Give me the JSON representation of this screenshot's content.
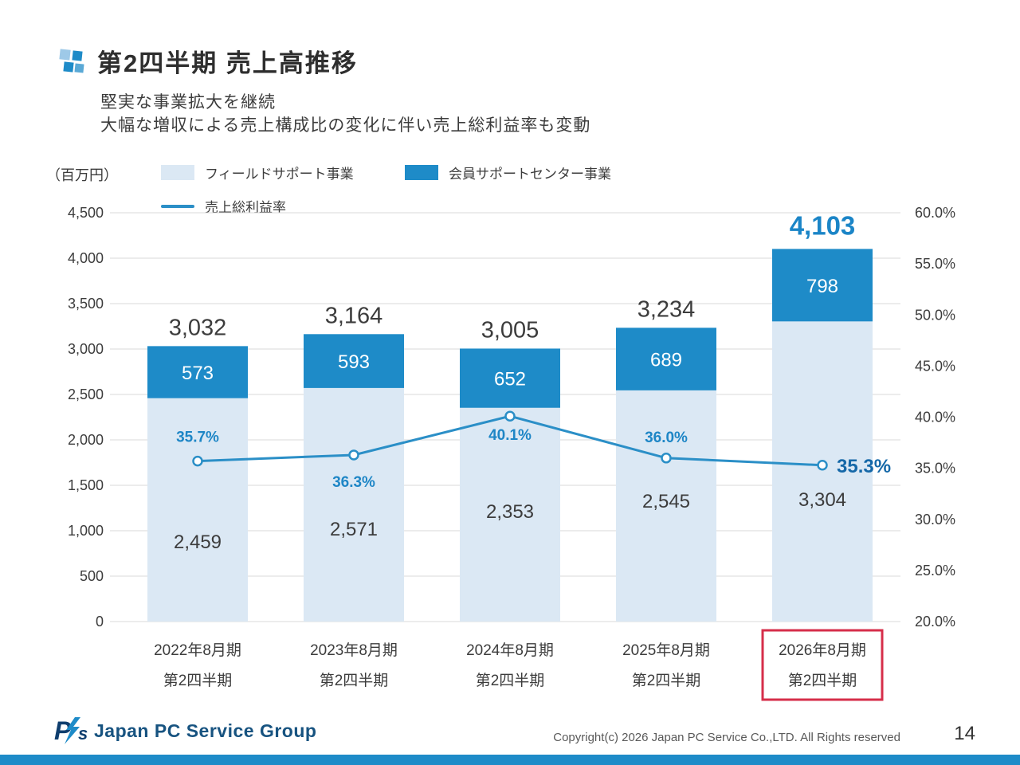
{
  "slide": {
    "title": "第2四半期 売上高推移",
    "subtitle_line1": "堅実な事業拡大を継続",
    "subtitle_line2": "大幅な増収による売上構成比の変化に伴い売上総利益率も変動",
    "unit_label": "（百万円）"
  },
  "legend": {
    "field_support_label": "フィールドサポート事業",
    "member_support_label": "会員サポートセンター事業",
    "gross_margin_label": "売上総利益率"
  },
  "colors": {
    "bar_field_support": "#dbe8f4",
    "bar_member_support": "#1e8bc8",
    "margin_line": "#2b8fc7",
    "pct_label": "#1e86c6",
    "highlight_text": "#1568a8",
    "total_highlight": "#1b85c7",
    "total_normal": "#3c3c3c",
    "highlight_box": "#d62e4a",
    "footer_strip": "#1e8bc8",
    "grid": "#d9d9d9"
  },
  "chart_data": {
    "type": "bar",
    "stacked": true,
    "grid": true,
    "legend_position": "top",
    "categories": [
      {
        "top": "2022年8月期",
        "bottom": "第2四半期"
      },
      {
        "top": "2023年8月期",
        "bottom": "第2四半期"
      },
      {
        "top": "2024年8月期",
        "bottom": "第2四半期"
      },
      {
        "top": "2025年8月期",
        "bottom": "第2四半期"
      },
      {
        "top": "2026年8月期",
        "bottom": "第2四半期"
      }
    ],
    "series": [
      {
        "name": "フィールドサポート事業",
        "type": "bar",
        "axis": "left",
        "values": [
          2459,
          2571,
          2353,
          2545,
          3304
        ]
      },
      {
        "name": "会員サポートセンター事業",
        "type": "bar",
        "axis": "left",
        "values": [
          573,
          593,
          652,
          689,
          798
        ]
      },
      {
        "name": "売上総利益率",
        "type": "line",
        "axis": "right",
        "values": [
          35.7,
          36.3,
          40.1,
          36.0,
          35.3
        ]
      }
    ],
    "totals": [
      3032,
      3164,
      3005,
      3234,
      4103
    ],
    "highlight_index": 4,
    "left_axis": {
      "min": 0,
      "max": 4500,
      "step": 500,
      "title": "（百万円）"
    },
    "right_axis": {
      "min": 20,
      "max": 60,
      "step": 5,
      "suffix": "%"
    }
  },
  "footer": {
    "logo_text": "Japan PC Service Group",
    "copyright": "Copyright(c) 2026 Japan PC Service Co.,LTD. All Rights reserved",
    "page_number": "14"
  }
}
